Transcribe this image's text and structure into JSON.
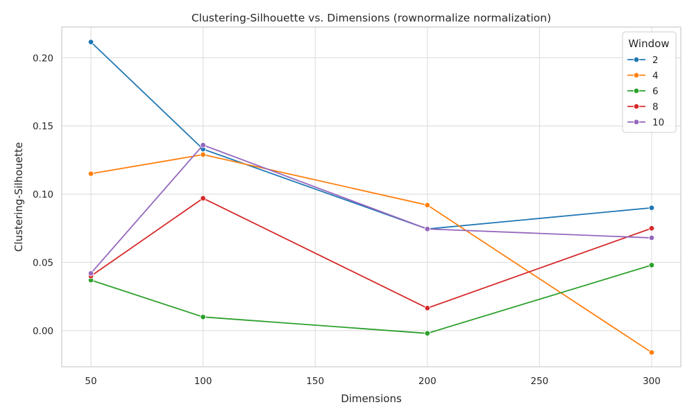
{
  "chart_data": {
    "type": "line",
    "title": "Clustering-Silhouette vs. Dimensions (rownormalize normalization)",
    "xlabel": "Dimensions",
    "ylabel": "Clustering-Silhouette",
    "x": [
      50,
      100,
      200,
      300
    ],
    "xlim": [
      37,
      313
    ],
    "ylim": [
      -0.0265,
      0.2225
    ],
    "xticks": [
      50,
      100,
      150,
      200,
      250,
      300
    ],
    "yticks": [
      0.0,
      0.05,
      0.1,
      0.15,
      0.2
    ],
    "ytick_labels": [
      "0.00",
      "0.05",
      "0.10",
      "0.15",
      "0.20"
    ],
    "grid": true,
    "legend": {
      "title": "Window",
      "placement": "top-right"
    },
    "series": [
      {
        "name": "2",
        "color": "#1f77b4",
        "values": [
          0.2115,
          0.133,
          0.0745,
          0.09
        ]
      },
      {
        "name": "4",
        "color": "#ff7f0e",
        "values": [
          0.115,
          0.129,
          0.092,
          -0.016
        ]
      },
      {
        "name": "6",
        "color": "#2ca02c",
        "values": [
          0.037,
          0.01,
          -0.002,
          0.048
        ]
      },
      {
        "name": "8",
        "color": "#d62728",
        "values": [
          0.04,
          0.097,
          0.0165,
          0.075
        ]
      },
      {
        "name": "10",
        "color": "#9467bd",
        "values": [
          0.042,
          0.136,
          0.0745,
          0.068
        ]
      }
    ]
  }
}
